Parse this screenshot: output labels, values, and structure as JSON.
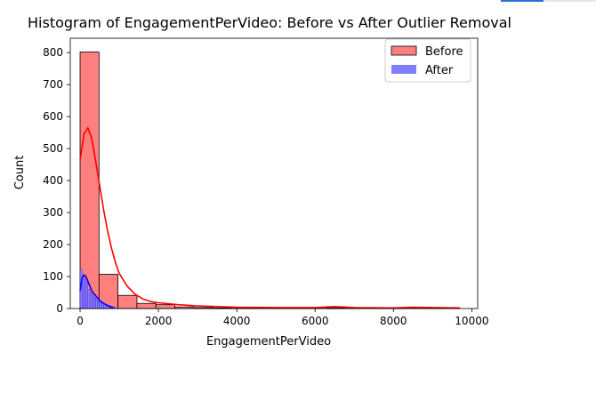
{
  "chart_data": {
    "type": "bar",
    "title": "Histogram of EngagementPerVideo: Before vs After Outlier Removal",
    "xlabel": "EngagementPerVideo",
    "ylabel": "Count",
    "xlim": [
      -250,
      10150
    ],
    "ylim": [
      0,
      845
    ],
    "xticks": [
      0,
      2000,
      4000,
      6000,
      8000,
      10000
    ],
    "yticks": [
      0,
      100,
      200,
      300,
      400,
      500,
      600,
      700,
      800
    ],
    "xtick_labels": [
      "0",
      "2000",
      "4000",
      "6000",
      "8000",
      "10000"
    ],
    "ytick_labels": [
      "0",
      "100",
      "200",
      "300",
      "400",
      "500",
      "600",
      "700",
      "800"
    ],
    "legend": {
      "placement": "top-right",
      "entries": [
        "Before",
        "After"
      ]
    },
    "series": [
      {
        "name": "Before",
        "color": "#ff0000",
        "fill": "#ff7f7f",
        "bins": [
          {
            "x0": 0,
            "x1": 484,
            "count": 802
          },
          {
            "x0": 484,
            "x1": 968,
            "count": 107
          },
          {
            "x0": 968,
            "x1": 1452,
            "count": 41
          },
          {
            "x0": 1452,
            "x1": 1936,
            "count": 16
          },
          {
            "x0": 1936,
            "x1": 2420,
            "count": 12
          },
          {
            "x0": 2420,
            "x1": 2904,
            "count": 5
          },
          {
            "x0": 2904,
            "x1": 3388,
            "count": 3
          },
          {
            "x0": 3388,
            "x1": 3872,
            "count": 2
          },
          {
            "x0": 3872,
            "x1": 4356,
            "count": 1
          },
          {
            "x0": 4356,
            "x1": 4840,
            "count": 1
          },
          {
            "x0": 4840,
            "x1": 5324,
            "count": 1
          },
          {
            "x0": 5324,
            "x1": 5808,
            "count": 1
          },
          {
            "x0": 5808,
            "x1": 6292,
            "count": 1
          },
          {
            "x0": 6292,
            "x1": 6776,
            "count": 2
          },
          {
            "x0": 6776,
            "x1": 7260,
            "count": 1
          },
          {
            "x0": 7260,
            "x1": 7744,
            "count": 1
          },
          {
            "x0": 7744,
            "x1": 8228,
            "count": 1
          },
          {
            "x0": 8228,
            "x1": 8712,
            "count": 2
          },
          {
            "x0": 8712,
            "x1": 9196,
            "count": 1
          },
          {
            "x0": 9196,
            "x1": 9680,
            "count": 2
          }
        ],
        "kde": {
          "x": [
            0,
            100,
            200,
            300,
            400,
            500,
            600,
            700,
            800,
            900,
            1000,
            1200,
            1400,
            1600,
            1800,
            2000,
            2500,
            3000,
            4000,
            5000,
            6000,
            6500,
            7000,
            8000,
            8500,
            9000,
            9700
          ],
          "y": [
            465,
            545,
            565,
            530,
            460,
            385,
            310,
            245,
            190,
            145,
            110,
            70,
            45,
            30,
            22,
            18,
            12,
            8,
            4,
            3,
            3,
            6,
            3,
            2,
            4,
            3,
            2
          ]
        }
      },
      {
        "name": "After",
        "color": "#0000ff",
        "fill": "#7f7fff",
        "bins": [
          {
            "x0": 0,
            "x1": 50,
            "count": 120
          },
          {
            "x0": 50,
            "x1": 100,
            "count": 95
          },
          {
            "x0": 100,
            "x1": 150,
            "count": 95
          },
          {
            "x0": 150,
            "x1": 200,
            "count": 85
          },
          {
            "x0": 200,
            "x1": 250,
            "count": 60
          },
          {
            "x0": 250,
            "x1": 300,
            "count": 50
          },
          {
            "x0": 300,
            "x1": 350,
            "count": 42
          },
          {
            "x0": 350,
            "x1": 400,
            "count": 35
          },
          {
            "x0": 400,
            "x1": 450,
            "count": 28
          },
          {
            "x0": 450,
            "x1": 500,
            "count": 24
          },
          {
            "x0": 500,
            "x1": 550,
            "count": 20
          },
          {
            "x0": 550,
            "x1": 600,
            "count": 17
          },
          {
            "x0": 600,
            "x1": 650,
            "count": 14
          },
          {
            "x0": 650,
            "x1": 700,
            "count": 12
          },
          {
            "x0": 700,
            "x1": 750,
            "count": 10
          },
          {
            "x0": 750,
            "x1": 800,
            "count": 8
          },
          {
            "x0": 800,
            "x1": 850,
            "count": 6
          },
          {
            "x0": 850,
            "x1": 900,
            "count": 5
          }
        ],
        "kde": {
          "x": [
            0,
            50,
            100,
            150,
            200,
            250,
            300,
            400,
            500,
            600,
            700,
            800,
            850
          ],
          "y": [
            55,
            95,
            105,
            100,
            85,
            70,
            55,
            40,
            25,
            16,
            10,
            4,
            2
          ]
        }
      }
    ]
  }
}
